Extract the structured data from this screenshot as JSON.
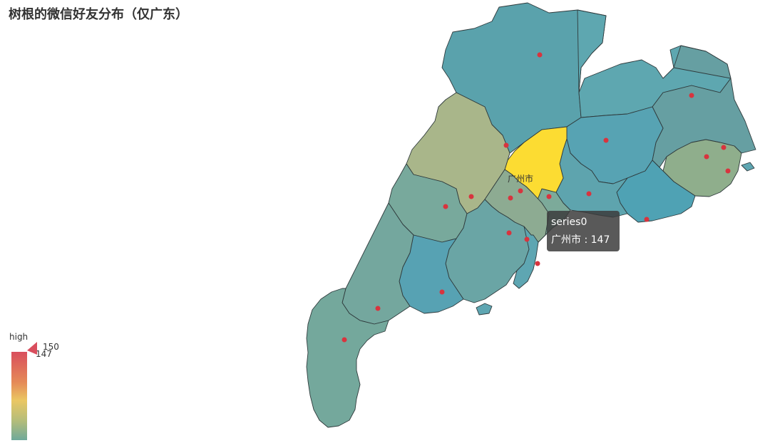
{
  "title": "树根的微信好友分布（仅广东）",
  "map": {
    "highlight_label": "广州市",
    "colors": {
      "high": "#d94e5d",
      "mid": "#eac763",
      "low": "#6fa99a",
      "highlight": "#fcdc32",
      "dot": "#d8343e"
    }
  },
  "tooltip": {
    "series": "series0",
    "city": "广州市",
    "separator": " : ",
    "value": "147"
  },
  "visual_map": {
    "high_label": "high",
    "max_value": "150",
    "current_value": "147"
  }
}
